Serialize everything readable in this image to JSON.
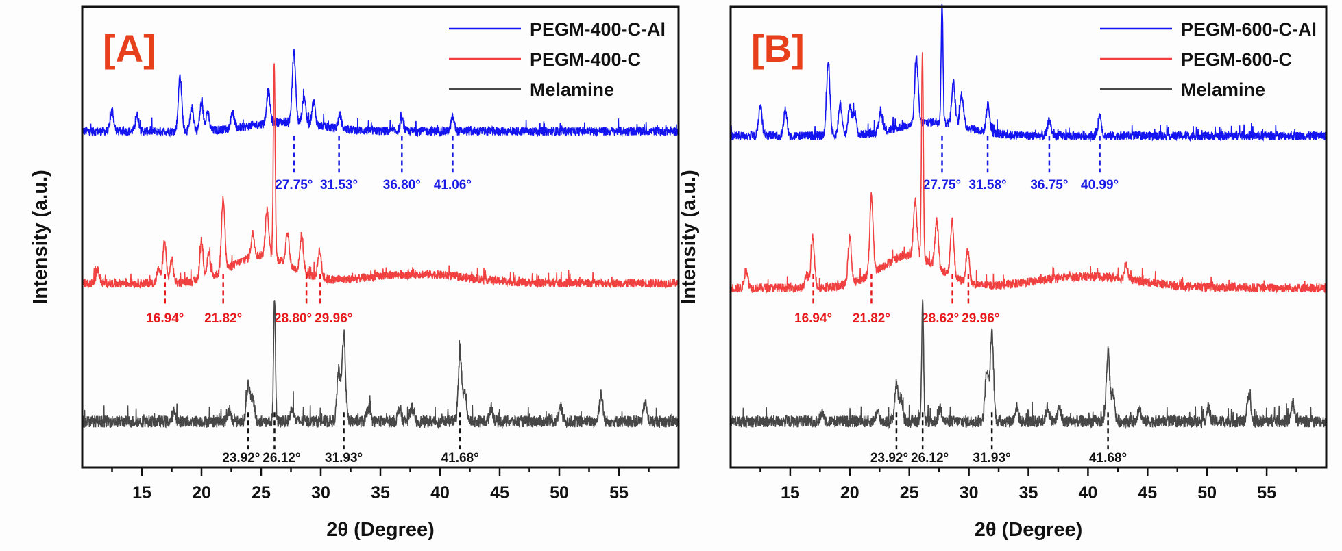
{
  "chart_data": [
    {
      "type": "line",
      "panel_label": "[A]",
      "panel_label_color": "#e8401c",
      "xlabel": "2θ (Degree)",
      "ylabel": "Intensity (a.u.)",
      "xlim": [
        10,
        60
      ],
      "ylim": [
        0,
        100
      ],
      "xticks": [
        15,
        20,
        25,
        30,
        35,
        40,
        45,
        50,
        55
      ],
      "xtick_labels": [
        "15",
        "20",
        "25",
        "30",
        "35",
        "40",
        "45",
        "50",
        "55"
      ],
      "legend_position": "top-right",
      "grid": false,
      "series": [
        {
          "name": "PEGM-400-C-Al",
          "color": "#1414f0",
          "baseline": 73,
          "peaks": [
            [
              12.5,
              4.5
            ],
            [
              14.6,
              3.5
            ],
            [
              18.2,
              12
            ],
            [
              19.2,
              5
            ],
            [
              20,
              6
            ],
            [
              20.5,
              4
            ],
            [
              22.6,
              3.5
            ],
            [
              25.6,
              7
            ],
            [
              27.75,
              15
            ],
            [
              28.6,
              6
            ],
            [
              29.4,
              5
            ],
            [
              31.6,
              3
            ],
            [
              36.8,
              2.5
            ],
            [
              41.06,
              3
            ]
          ],
          "humps": [
            [
              27,
              2,
              4
            ]
          ],
          "annotations": [
            {
              "x": 27.75,
              "label": "27.75°"
            },
            {
              "x": 31.53,
              "label": "31.53°"
            },
            {
              "x": 36.8,
              "label": "36.80°"
            },
            {
              "x": 41.06,
              "label": "41.06°"
            }
          ]
        },
        {
          "name": "PEGM-400-C",
          "color": "#f04040",
          "baseline": 40,
          "peaks": [
            [
              11.3,
              3
            ],
            [
              16.4,
              3
            ],
            [
              16.9,
              9
            ],
            [
              17.5,
              5
            ],
            [
              20,
              8
            ],
            [
              20.6,
              5
            ],
            [
              21.82,
              16
            ],
            [
              24.3,
              5
            ],
            [
              25.5,
              10
            ],
            [
              26.1,
              42
            ],
            [
              27.2,
              7
            ],
            [
              28.4,
              8
            ],
            [
              29.9,
              6
            ]
          ],
          "humps": [
            [
              25,
              6,
              3.5
            ],
            [
              38,
              2,
              6
            ]
          ],
          "annotations": [
            {
              "x": 16.94,
              "label": "16.94°"
            },
            {
              "x": 21.82,
              "label": "21.82°"
            },
            {
              "x": 28.8,
              "label": "28.80°"
            },
            {
              "x": 29.96,
              "label": "29.96°"
            }
          ]
        },
        {
          "name": "Melamine",
          "color": "#474747",
          "baseline": 10,
          "peaks": [
            [
              17.7,
              2
            ],
            [
              22.3,
              2
            ],
            [
              23.92,
              8
            ],
            [
              24.3,
              5
            ],
            [
              26.12,
              27
            ],
            [
              27.6,
              3
            ],
            [
              31.5,
              11
            ],
            [
              31.93,
              19
            ],
            [
              34,
              3
            ],
            [
              36.6,
              3
            ],
            [
              37.6,
              3
            ],
            [
              41.68,
              15
            ],
            [
              42.1,
              6
            ],
            [
              44.3,
              3
            ],
            [
              50.1,
              3
            ],
            [
              53.5,
              6
            ],
            [
              57.2,
              4
            ]
          ],
          "humps": [],
          "annotations": [
            {
              "x": 23.92,
              "label": "23.92°"
            },
            {
              "x": 26.12,
              "label": "26.12°"
            },
            {
              "x": 31.93,
              "label": "31.93°"
            },
            {
              "x": 41.68,
              "label": "41.68°"
            }
          ]
        }
      ]
    },
    {
      "type": "line",
      "panel_label": "[B]",
      "panel_label_color": "#e8401c",
      "xlabel": "2θ (Degree)",
      "ylabel": "Intensity (a.u.)",
      "xlim": [
        10,
        60
      ],
      "ylim": [
        0,
        100
      ],
      "xticks": [
        15,
        20,
        25,
        30,
        35,
        40,
        45,
        50,
        55
      ],
      "xtick_labels": [
        "15",
        "20",
        "25",
        "30",
        "35",
        "40",
        "45",
        "50",
        "55"
      ],
      "legend_position": "top-right",
      "grid": false,
      "series": [
        {
          "name": "PEGM-600-C-Al",
          "color": "#1414f0",
          "baseline": 72,
          "peaks": [
            [
              12.5,
              6.5
            ],
            [
              14.6,
              5.5
            ],
            [
              18.2,
              16
            ],
            [
              19.2,
              7
            ],
            [
              20,
              6.5
            ],
            [
              20.4,
              5
            ],
            [
              22.6,
              4.5
            ],
            [
              25.6,
              14
            ],
            [
              27.75,
              26
            ],
            [
              28.7,
              9
            ],
            [
              29.4,
              7
            ],
            [
              31.6,
              6
            ],
            [
              36.75,
              3.5
            ],
            [
              40.99,
              4.5
            ]
          ],
          "humps": [
            [
              27,
              3,
              4
            ]
          ],
          "annotations": [
            {
              "x": 27.75,
              "label": "27.75°"
            },
            {
              "x": 31.58,
              "label": "31.58°"
            },
            {
              "x": 36.75,
              "label": "36.75°"
            },
            {
              "x": 40.99,
              "label": "40.99°"
            }
          ]
        },
        {
          "name": "PEGM-600-C",
          "color": "#f04040",
          "baseline": 39,
          "peaks": [
            [
              11.3,
              4
            ],
            [
              16.4,
              3
            ],
            [
              16.9,
              11
            ],
            [
              20,
              10
            ],
            [
              21.82,
              17
            ],
            [
              25.5,
              12
            ],
            [
              26.1,
              45
            ],
            [
              27.3,
              10
            ],
            [
              28.6,
              12
            ],
            [
              29.9,
              7
            ],
            [
              43.2,
              3
            ]
          ],
          "humps": [
            [
              25,
              7,
              3.5
            ],
            [
              40,
              2.5,
              6
            ]
          ],
          "annotations": [
            {
              "x": 16.94,
              "label": "16.94°"
            },
            {
              "x": 21.82,
              "label": "21.82°"
            },
            {
              "x": 28.62,
              "label": "28.62°"
            },
            {
              "x": 29.96,
              "label": "29.96°"
            }
          ]
        },
        {
          "name": "Melamine",
          "color": "#474747",
          "baseline": 10,
          "peaks": [
            [
              17.7,
              2
            ],
            [
              22.3,
              2
            ],
            [
              23.92,
              8
            ],
            [
              24.3,
              5
            ],
            [
              26.12,
              27
            ],
            [
              27.6,
              3
            ],
            [
              31.5,
              11
            ],
            [
              31.93,
              19
            ],
            [
              34,
              3
            ],
            [
              36.6,
              3
            ],
            [
              37.6,
              3
            ],
            [
              41.68,
              15
            ],
            [
              42.1,
              6
            ],
            [
              44.3,
              3
            ],
            [
              50.1,
              3
            ],
            [
              53.5,
              6
            ],
            [
              57.2,
              4
            ]
          ],
          "humps": [],
          "annotations": [
            {
              "x": 23.92,
              "label": "23.92°"
            },
            {
              "x": 26.12,
              "label": "26.12°"
            },
            {
              "x": 31.93,
              "label": "31.93°"
            },
            {
              "x": 41.68,
              "label": "41.68°"
            }
          ]
        }
      ]
    }
  ]
}
